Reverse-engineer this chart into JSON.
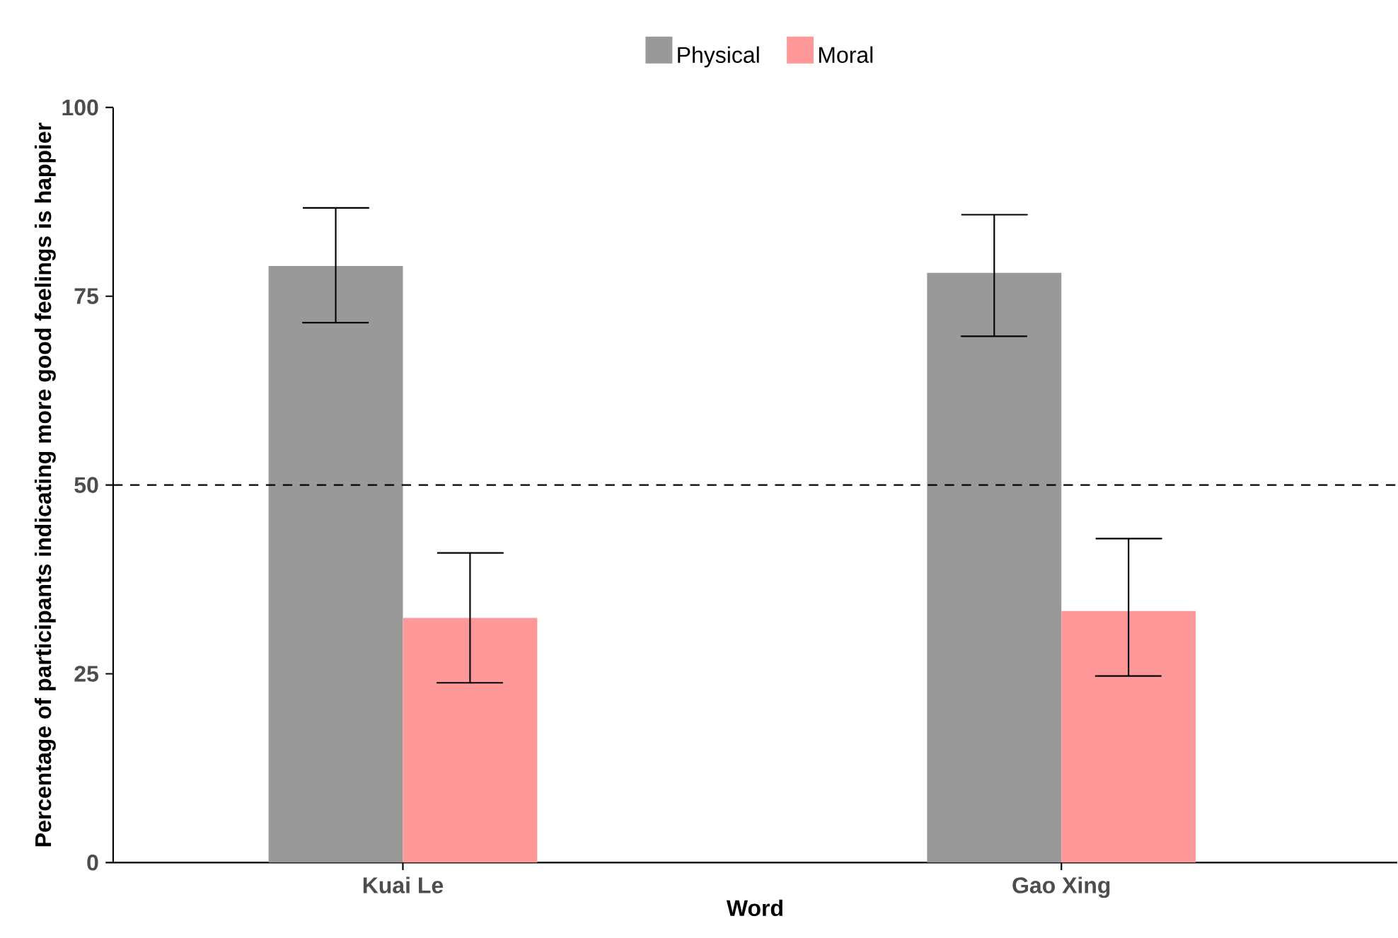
{
  "chart_data": {
    "type": "bar",
    "xlabel": "Word",
    "ylabel": "Percentage of participants indicating more good feelings is happier",
    "categories": [
      "Kuai Le",
      "Gao Xing"
    ],
    "series": [
      {
        "name": "Physical",
        "color": "#999999",
        "values": [
          79.0,
          78.1
        ],
        "errors": [
          [
            71.5,
            86.7
          ],
          [
            69.7,
            85.8
          ]
        ]
      },
      {
        "name": "Moral",
        "color": "#ff9999",
        "values": [
          32.4,
          33.3
        ],
        "errors": [
          [
            23.8,
            41.0
          ],
          [
            24.7,
            42.9
          ]
        ]
      }
    ],
    "ylim": [
      0,
      100
    ],
    "yticks": [
      0,
      25,
      50,
      75,
      100
    ],
    "grid": false,
    "legend": "top",
    "ref_lines": [
      {
        "axis": "y",
        "value": 50,
        "line_style": "dashed",
        "color": "#000000"
      }
    ]
  }
}
